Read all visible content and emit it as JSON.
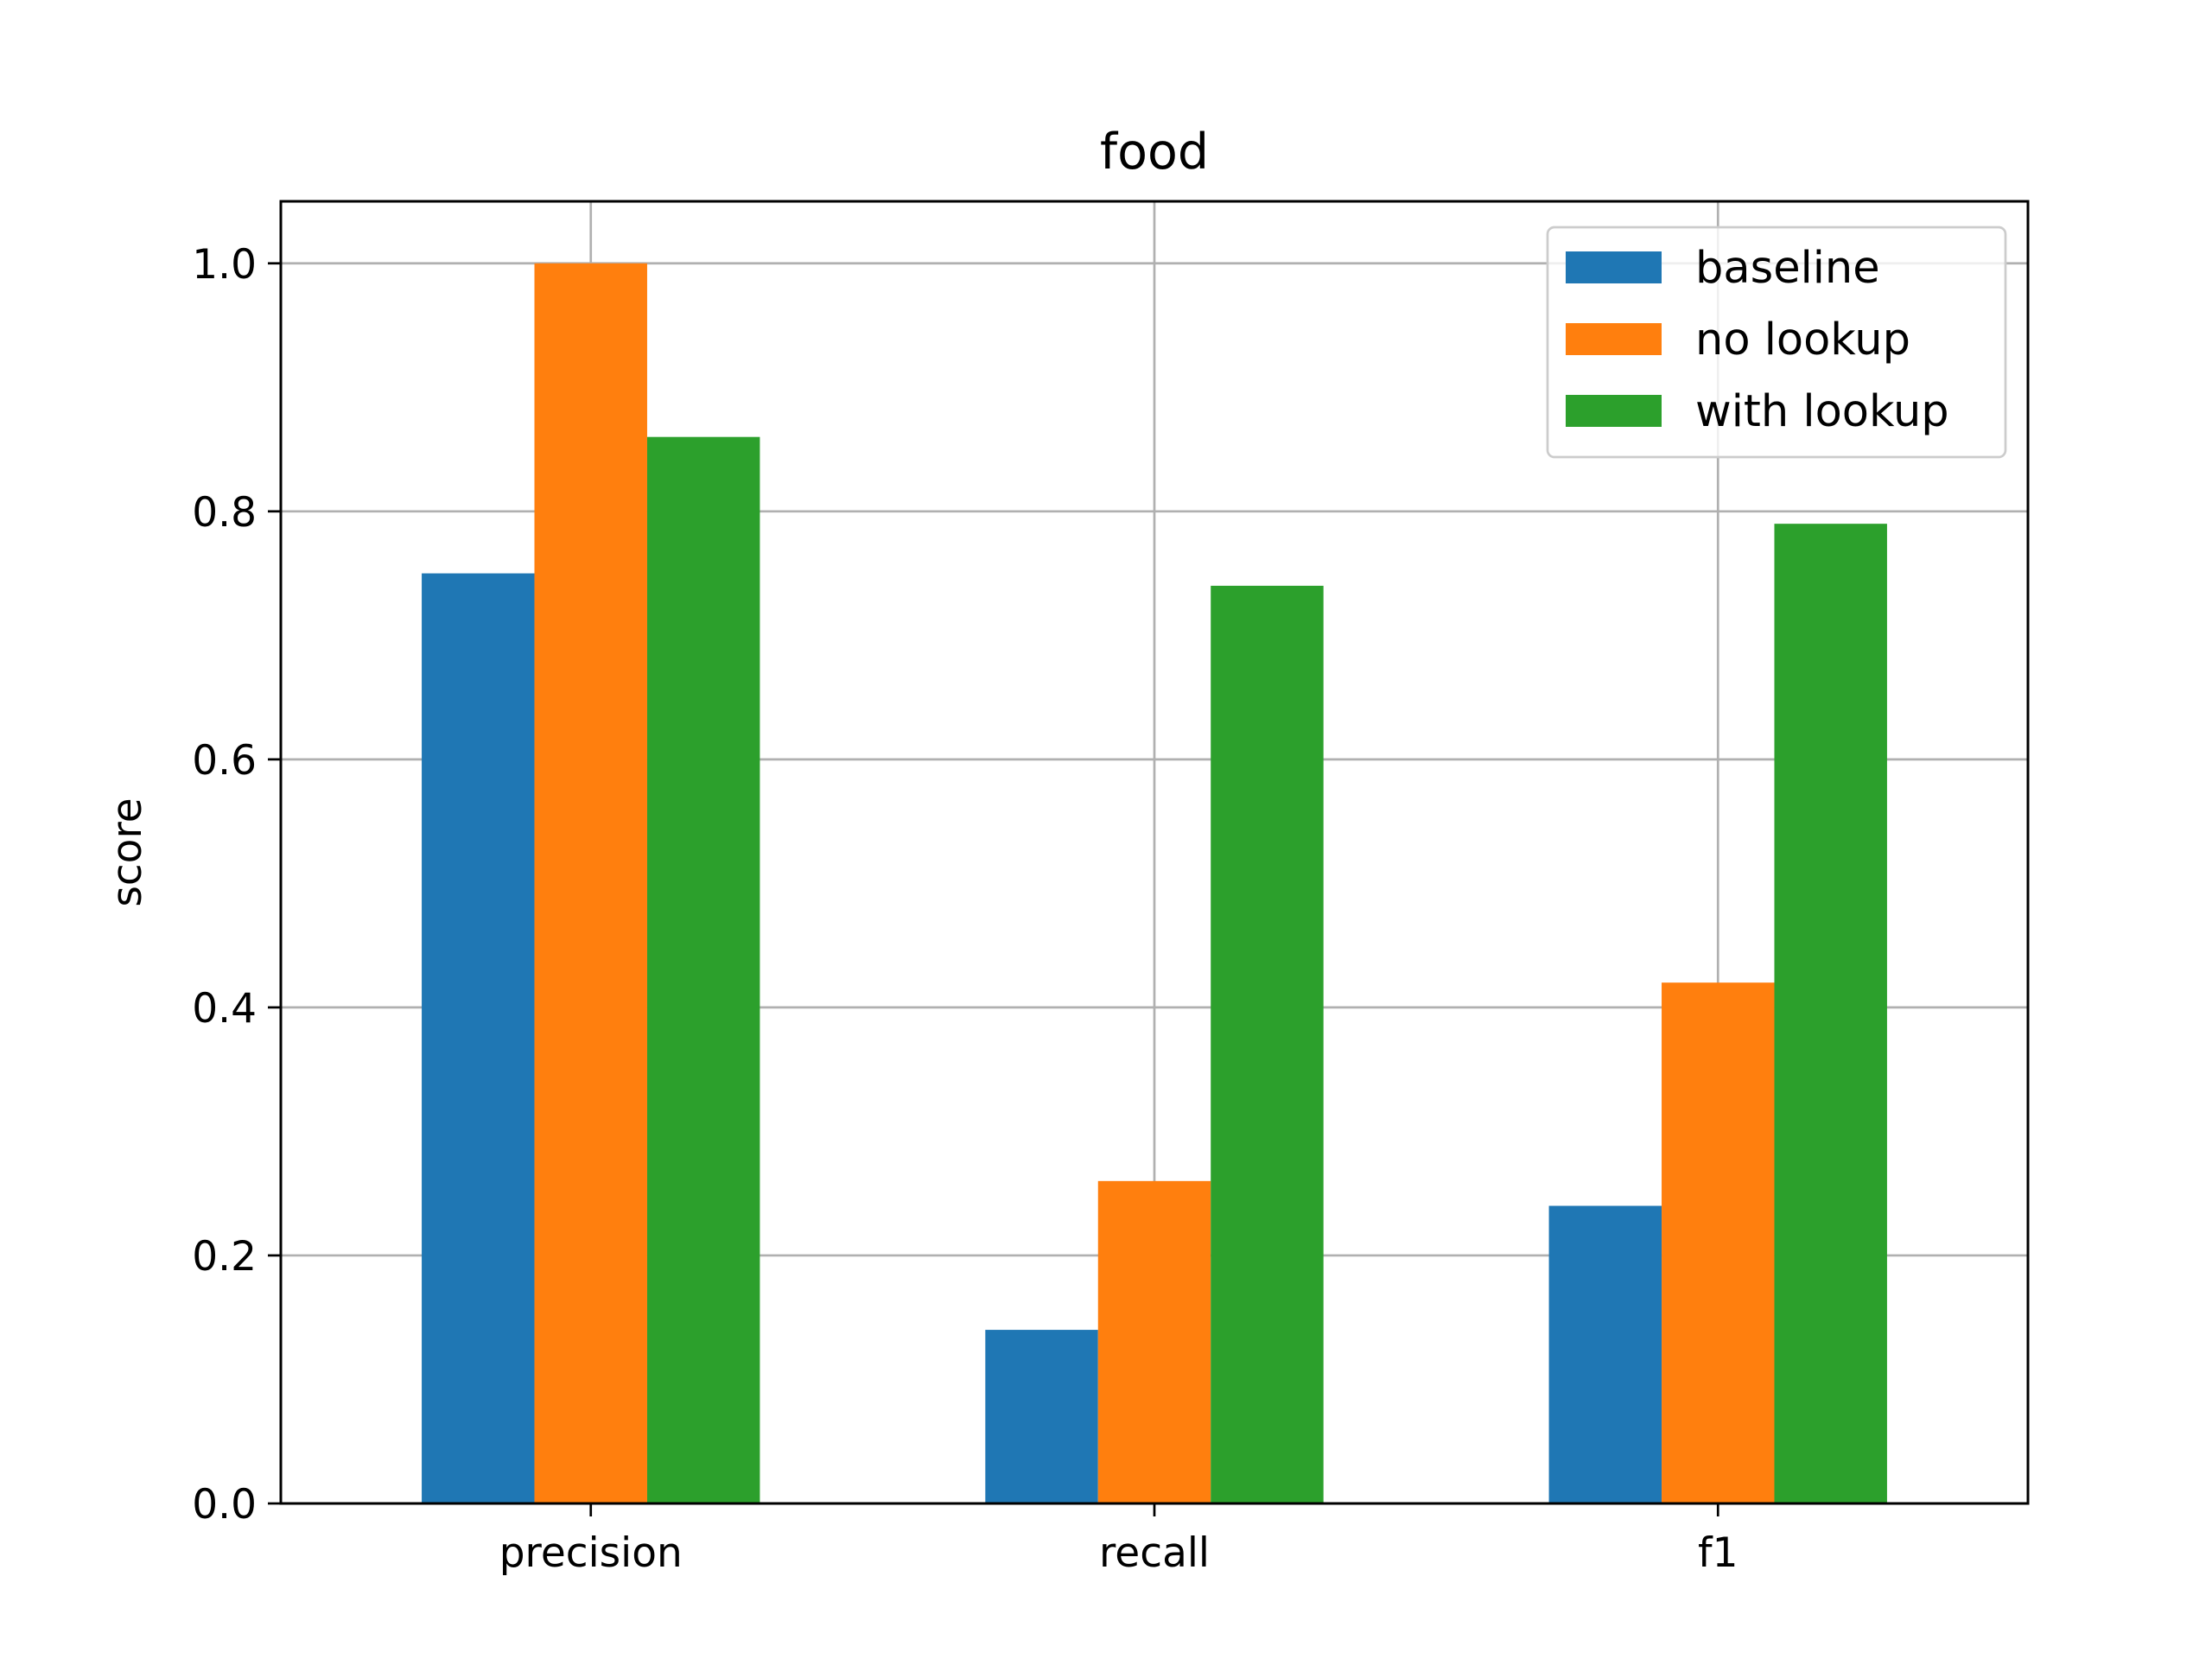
{
  "chart_data": {
    "type": "bar",
    "title": "food",
    "xlabel": "",
    "ylabel": "score",
    "categories": [
      "precision",
      "recall",
      "f1"
    ],
    "series": [
      {
        "name": "baseline",
        "color": "#1f77b4",
        "values": [
          0.75,
          0.14,
          0.24
        ]
      },
      {
        "name": "no lookup",
        "color": "#ff7f0e",
        "values": [
          1.0,
          0.26,
          0.42
        ]
      },
      {
        "name": "with lookup",
        "color": "#2ca02c",
        "values": [
          0.86,
          0.74,
          0.79
        ]
      }
    ],
    "ylim": [
      0,
      1.05
    ],
    "yticks": [
      "0.0",
      "0.2",
      "0.4",
      "0.6",
      "0.8",
      "1.0"
    ],
    "grid": true,
    "legend_position": "top-right"
  }
}
